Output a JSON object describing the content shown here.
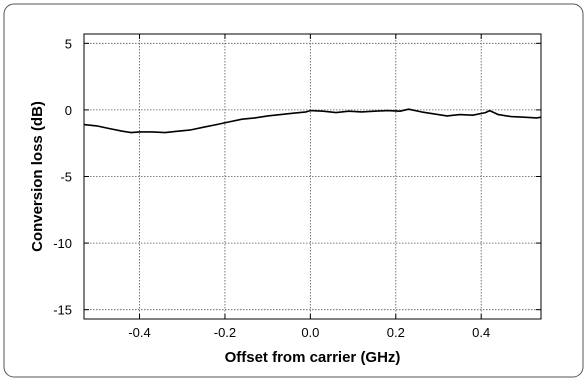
{
  "chart_data": {
    "type": "line",
    "xlabel": "Offset from carrier (GHz)",
    "ylabel": "Conversion loss (dB)",
    "xlim": [
      -0.53,
      0.54
    ],
    "ylim": [
      -15.7,
      5.7
    ],
    "x_ticks": [
      -0.4,
      -0.2,
      0.0,
      0.2,
      0.4
    ],
    "x_tick_labels": [
      "-0.4",
      "-0.2",
      "0.0",
      "0.2",
      "0.4"
    ],
    "y_ticks": [
      5,
      0,
      -5,
      -10,
      -15
    ],
    "y_tick_labels": [
      "5",
      "0",
      "-5",
      "-10",
      "-15"
    ],
    "grid": true,
    "series": [
      {
        "color": "#000000",
        "x": [
          -0.53,
          -0.5,
          -0.47,
          -0.44,
          -0.42,
          -0.4,
          -0.37,
          -0.34,
          -0.31,
          -0.28,
          -0.25,
          -0.22,
          -0.19,
          -0.16,
          -0.13,
          -0.1,
          -0.07,
          -0.04,
          -0.01,
          0.0,
          0.03,
          0.06,
          0.09,
          0.12,
          0.15,
          0.18,
          0.21,
          0.23,
          0.26,
          0.29,
          0.32,
          0.35,
          0.38,
          0.41,
          0.42,
          0.44,
          0.47,
          0.5,
          0.53,
          0.54
        ],
        "y": [
          -1.1,
          -1.2,
          -1.4,
          -1.6,
          -1.7,
          -1.65,
          -1.65,
          -1.7,
          -1.6,
          -1.5,
          -1.3,
          -1.1,
          -0.9,
          -0.7,
          -0.6,
          -0.45,
          -0.35,
          -0.25,
          -0.15,
          -0.05,
          -0.1,
          -0.2,
          -0.1,
          -0.15,
          -0.1,
          -0.05,
          -0.1,
          0.05,
          -0.15,
          -0.3,
          -0.45,
          -0.35,
          -0.4,
          -0.2,
          -0.05,
          -0.35,
          -0.5,
          -0.55,
          -0.6,
          -0.55
        ]
      }
    ]
  }
}
